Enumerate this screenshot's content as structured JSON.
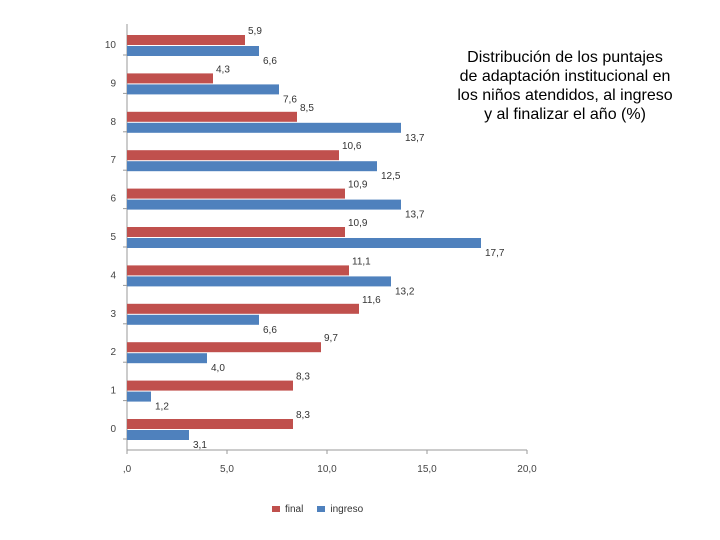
{
  "chart_data": {
    "type": "bar",
    "orientation": "horizontal",
    "title_lines": [
      "Distribución de los puntajes",
      "de adaptación institucional en",
      "los niños atendidos, al ingreso",
      "y al finalizar el año  (%)"
    ],
    "categories": [
      "10",
      "9",
      "8",
      "7",
      "6",
      "5",
      "4",
      "3",
      "2",
      "1",
      "0"
    ],
    "series": [
      {
        "name": "final",
        "color": "#c0504d",
        "values": [
          5.9,
          4.3,
          8.5,
          10.6,
          10.9,
          10.9,
          11.1,
          11.6,
          9.7,
          8.3,
          8.3
        ],
        "labels": [
          "5,9",
          "4,3",
          "8,5",
          "10,6",
          "10,9",
          "10,9",
          "11,1",
          "11,6",
          "9,7",
          "8,3",
          "8,3"
        ]
      },
      {
        "name": "ingreso",
        "color": "#4f81bd",
        "values": [
          6.6,
          7.6,
          13.7,
          12.5,
          13.7,
          17.7,
          13.2,
          6.6,
          4.0,
          1.2,
          3.1
        ],
        "labels": [
          "6,6",
          "7,6",
          "13,7",
          "12,5",
          "13,7",
          "17,7",
          "13,2",
          "6,6",
          "4,0",
          "1,2",
          "3,1"
        ]
      }
    ],
    "x_ticks": [
      0,
      5,
      10,
      15,
      20
    ],
    "x_tick_labels": [
      ",0",
      "5,0",
      "10,0",
      "15,0",
      "20,0"
    ],
    "xlim": [
      0,
      20
    ],
    "legend_position": "bottom",
    "grid": false
  }
}
